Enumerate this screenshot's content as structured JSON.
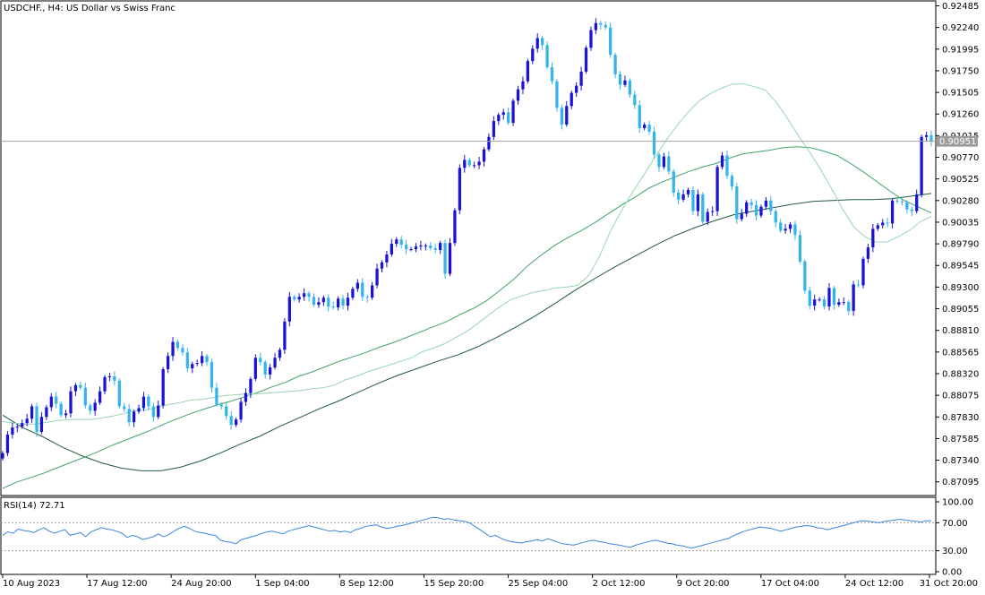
{
  "window": {
    "symbol_title": "USDCHF., H4:  US Dollar vs Swiss Franc"
  },
  "price_panel": {
    "axis_ticks": [
      "0.92485",
      "0.92240",
      "0.91995",
      "0.91750",
      "0.91505",
      "0.91260",
      "0.91015",
      "0.90770",
      "0.90525",
      "0.90280",
      "0.90035",
      "0.89790",
      "0.89545",
      "0.89300",
      "0.89055",
      "0.88810",
      "0.88565",
      "0.88320",
      "0.88075",
      "0.87830",
      "0.87585",
      "0.87340",
      "0.87095"
    ],
    "current_price_label": "0.90951",
    "current_price": 0.90951
  },
  "rsi_panel": {
    "label": "RSI(14) 72.71",
    "axis_ticks": [
      "100.00",
      "70.00",
      "30.00",
      "0.00"
    ],
    "levels": [
      70,
      30
    ],
    "current": 72.71
  },
  "time_axis": {
    "labels": [
      "10 Aug 2023",
      "17 Aug 12:00",
      "24 Aug 20:00",
      "1 Sep 04:00",
      "8 Sep 12:00",
      "15 Sep 20:00",
      "25 Sep 04:00",
      "2 Oct 12:00",
      "9 Oct 20:00",
      "17 Oct 04:00",
      "24 Oct 12:00",
      "31 Oct 20:00"
    ]
  },
  "colors": {
    "bull_candle": "#1a12d8",
    "bear_candle": "#33b4ea",
    "ma_fast": "#98d6ae",
    "ma_mid": "#41a265",
    "ma_slow": "#1f5a3c",
    "rsi_line": "#3a85e0",
    "grid_level": "#a0a0a0"
  },
  "chart_data": {
    "type": "candlestick",
    "timeframe": "H4",
    "price_range": [
      0.8695,
      0.9249
    ],
    "rsi_range": [
      0,
      100
    ],
    "closes": [
      0.8742,
      0.8763,
      0.8771,
      0.8772,
      0.8776,
      0.8781,
      0.8795,
      0.8766,
      0.8783,
      0.8794,
      0.8806,
      0.8798,
      0.8785,
      0.8787,
      0.8812,
      0.8819,
      0.8816,
      0.8796,
      0.879,
      0.8799,
      0.8812,
      0.8828,
      0.8829,
      0.8824,
      0.8795,
      0.8792,
      0.8777,
      0.8789,
      0.8793,
      0.8806,
      0.8795,
      0.8783,
      0.8796,
      0.8837,
      0.8852,
      0.8868,
      0.8861,
      0.8856,
      0.8838,
      0.8843,
      0.8844,
      0.8852,
      0.8845,
      0.8816,
      0.8797,
      0.8795,
      0.8784,
      0.8774,
      0.878,
      0.88,
      0.881,
      0.8826,
      0.885,
      0.8845,
      0.8831,
      0.8839,
      0.885,
      0.8859,
      0.8891,
      0.8919,
      0.8916,
      0.8919,
      0.8923,
      0.8919,
      0.891,
      0.8913,
      0.8918,
      0.8908,
      0.8907,
      0.8917,
      0.8909,
      0.8918,
      0.8928,
      0.8935,
      0.8919,
      0.8918,
      0.8932,
      0.8951,
      0.8958,
      0.8967,
      0.8979,
      0.8984,
      0.8978,
      0.8973,
      0.8973,
      0.8976,
      0.8977,
      0.8977,
      0.8974,
      0.8972,
      0.898,
      0.8945,
      0.898,
      0.9017,
      0.9065,
      0.9074,
      0.9068,
      0.9068,
      0.9072,
      0.9086,
      0.91,
      0.9118,
      0.9125,
      0.9128,
      0.9116,
      0.9141,
      0.9154,
      0.9163,
      0.9186,
      0.92,
      0.9212,
      0.9204,
      0.9179,
      0.9163,
      0.9133,
      0.9114,
      0.9135,
      0.915,
      0.9158,
      0.9174,
      0.9201,
      0.9221,
      0.9229,
      0.9227,
      0.9224,
      0.9193,
      0.9171,
      0.9159,
      0.9164,
      0.9148,
      0.9136,
      0.911,
      0.9114,
      0.9106,
      0.908,
      0.9066,
      0.9078,
      0.9061,
      0.9037,
      0.9029,
      0.9035,
      0.904,
      0.9016,
      0.9035,
      0.9004,
      0.9015,
      0.9016,
      0.9066,
      0.9079,
      0.9056,
      0.9044,
      0.9007,
      0.9013,
      0.9026,
      0.9023,
      0.9011,
      0.9021,
      0.9028,
      0.9016,
      0.9003,
      0.8994,
      0.8996,
      0.9001,
      0.8989,
      0.8959,
      0.8926,
      0.8909,
      0.8916,
      0.8916,
      0.8908,
      0.8929,
      0.891,
      0.8913,
      0.8913,
      0.8903,
      0.8933,
      0.8932,
      0.8962,
      0.8975,
      0.8996,
      0.9,
      0.9003,
      0.9002,
      0.9028,
      0.9027,
      0.9026,
      0.9018,
      0.9016,
      0.9035,
      0.91,
      0.9102,
      0.9095
    ],
    "ma_fast": [
      0.8778,
      0.8776,
      0.8775,
      0.8775,
      0.8777,
      0.8779,
      0.878,
      0.878,
      0.878,
      0.8782,
      0.8784,
      0.8787,
      0.879,
      0.8791,
      0.8794,
      0.8797,
      0.8799,
      0.8802,
      0.8803,
      0.8805,
      0.8807,
      0.8808,
      0.8809,
      0.8809,
      0.881,
      0.8811,
      0.8812,
      0.8813,
      0.8815,
      0.8816,
      0.8819,
      0.8825,
      0.8829,
      0.8834,
      0.8838,
      0.8842,
      0.8846,
      0.885,
      0.8857,
      0.8861,
      0.8866,
      0.8873,
      0.888,
      0.8889,
      0.8899,
      0.8908,
      0.8916,
      0.892,
      0.8924,
      0.8926,
      0.8929,
      0.893,
      0.8932,
      0.8943,
      0.8965,
      0.8994,
      0.9017,
      0.9038,
      0.9057,
      0.9077,
      0.9096,
      0.9113,
      0.9128,
      0.9141,
      0.9149,
      0.9155,
      0.916,
      0.916,
      0.9157,
      0.9153,
      0.9139,
      0.9121,
      0.9101,
      0.9083,
      0.9063,
      0.9041,
      0.9018,
      0.8998,
      0.8987,
      0.8981,
      0.8981,
      0.8987,
      0.8994,
      0.9004,
      0.901
    ],
    "ma_mid": [
      0.8702,
      0.8709,
      0.8714,
      0.8719,
      0.8725,
      0.8731,
      0.8737,
      0.8743,
      0.875,
      0.8756,
      0.8762,
      0.8768,
      0.8775,
      0.8781,
      0.8787,
      0.8792,
      0.8797,
      0.8801,
      0.8806,
      0.8811,
      0.8817,
      0.8822,
      0.8829,
      0.8834,
      0.884,
      0.8846,
      0.8851,
      0.8856,
      0.8862,
      0.8867,
      0.8873,
      0.8879,
      0.8885,
      0.8891,
      0.8899,
      0.8906,
      0.8915,
      0.8927,
      0.8939,
      0.8954,
      0.8966,
      0.8977,
      0.8986,
      0.8994,
      0.9003,
      0.9013,
      0.9023,
      0.9032,
      0.9042,
      0.9049,
      0.9055,
      0.9061,
      0.9066,
      0.907,
      0.9076,
      0.9081,
      0.9083,
      0.9085,
      0.9088,
      0.9089,
      0.9088,
      0.9084,
      0.9079,
      0.907,
      0.906,
      0.9049,
      0.9038,
      0.9028,
      0.9021,
      0.9014
    ],
    "ma_slow": [
      0.8785,
      0.8771,
      0.8761,
      0.8749,
      0.8739,
      0.8731,
      0.8725,
      0.8722,
      0.8722,
      0.8726,
      0.8733,
      0.8742,
      0.8752,
      0.8761,
      0.8772,
      0.8782,
      0.8792,
      0.8801,
      0.8811,
      0.8821,
      0.883,
      0.8838,
      0.8846,
      0.8853,
      0.8862,
      0.8873,
      0.8885,
      0.8898,
      0.8912,
      0.8927,
      0.894,
      0.8953,
      0.8965,
      0.8977,
      0.8988,
      0.8997,
      0.9005,
      0.9012,
      0.9016,
      0.902,
      0.9024,
      0.9027,
      0.9028,
      0.9029,
      0.9029,
      0.903,
      0.9033,
      0.9036
    ],
    "rsi": [
      52,
      57,
      55,
      61,
      59,
      58,
      56,
      60,
      63,
      58,
      55,
      58,
      60,
      52,
      54,
      56,
      50,
      57,
      60,
      63,
      61,
      60,
      58,
      55,
      49,
      52,
      50,
      46,
      48,
      50,
      54,
      50,
      53,
      58,
      62,
      65,
      62,
      58,
      56,
      55,
      53,
      52,
      45,
      43,
      42,
      40,
      46,
      48,
      50,
      52,
      55,
      57,
      58,
      56,
      54,
      58,
      60,
      62,
      64,
      66,
      64,
      62,
      60,
      58,
      59,
      57,
      58,
      56,
      60,
      62,
      65,
      66,
      67,
      64,
      62,
      63,
      65,
      66,
      68,
      70,
      72,
      74,
      76,
      78,
      77,
      75,
      76,
      74,
      73,
      72,
      70,
      65,
      60,
      55,
      50,
      52,
      48,
      45,
      43,
      42,
      41,
      43,
      44,
      46,
      44,
      47,
      45,
      42,
      40,
      39,
      38,
      40,
      42,
      44,
      45,
      43,
      42,
      40,
      39,
      38,
      36,
      35,
      38,
      40,
      42,
      44,
      45,
      43,
      41,
      40,
      38,
      37,
      35,
      34,
      36,
      38,
      40,
      42,
      44,
      46,
      48,
      52,
      55,
      58,
      60,
      62,
      64,
      63,
      62,
      60,
      58,
      60,
      62,
      64,
      65,
      66,
      65,
      63,
      62,
      60,
      62,
      64,
      66,
      68,
      70,
      72,
      73,
      72,
      71,
      70,
      72,
      73,
      74,
      75,
      74,
      73,
      72,
      71,
      73,
      72.71
    ]
  }
}
